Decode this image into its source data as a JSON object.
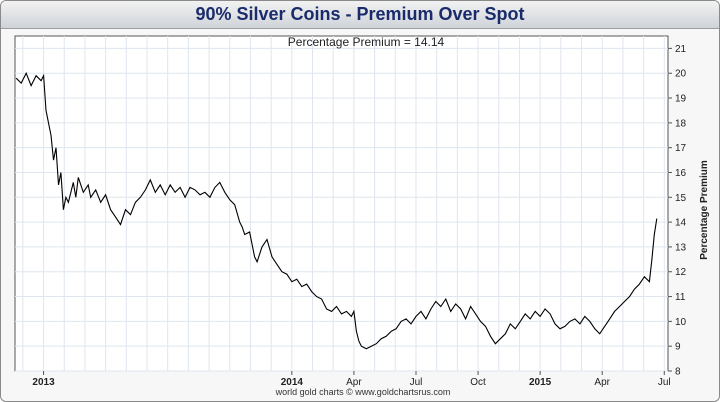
{
  "header": {
    "title": "90% Silver Coins - Premium Over Spot"
  },
  "chart_data": {
    "type": "line",
    "annotation": "Percentage Premium = 14.14",
    "ylabel": "Percentage Premium",
    "ylim": [
      8,
      21.5
    ],
    "yticks": [
      8,
      9,
      10,
      11,
      12,
      13,
      14,
      15,
      16,
      17,
      18,
      19,
      20,
      21
    ],
    "xticks": [
      {
        "label": "2013",
        "t": 0.0,
        "bold": true
      },
      {
        "label": "2014",
        "t": 1.0,
        "bold": true
      },
      {
        "label": "Apr",
        "t": 1.25,
        "bold": false
      },
      {
        "label": "Jul",
        "t": 1.5,
        "bold": false
      },
      {
        "label": "Oct",
        "t": 1.75,
        "bold": false
      },
      {
        "label": "2015",
        "t": 2.0,
        "bold": true
      },
      {
        "label": "Apr",
        "t": 2.25,
        "bold": false
      },
      {
        "label": "Jul",
        "t": 2.5,
        "bold": false
      }
    ],
    "credit": "world gold charts © www.goldchartsrus.com",
    "series": [
      {
        "color": "#000000",
        "points": [
          [
            -0.11,
            19.8
          ],
          [
            -0.09,
            19.6
          ],
          [
            -0.07,
            20.0
          ],
          [
            -0.05,
            19.5
          ],
          [
            -0.03,
            19.9
          ],
          [
            -0.01,
            19.7
          ],
          [
            0.0,
            19.9
          ],
          [
            0.01,
            18.5
          ],
          [
            0.03,
            17.5
          ],
          [
            0.04,
            16.5
          ],
          [
            0.05,
            17.0
          ],
          [
            0.06,
            15.5
          ],
          [
            0.07,
            16.0
          ],
          [
            0.08,
            14.5
          ],
          [
            0.09,
            15.0
          ],
          [
            0.1,
            14.8
          ],
          [
            0.12,
            15.6
          ],
          [
            0.13,
            15.0
          ],
          [
            0.14,
            15.8
          ],
          [
            0.16,
            15.2
          ],
          [
            0.18,
            15.5
          ],
          [
            0.19,
            15.0
          ],
          [
            0.21,
            15.3
          ],
          [
            0.23,
            14.8
          ],
          [
            0.25,
            15.1
          ],
          [
            0.27,
            14.5
          ],
          [
            0.29,
            14.2
          ],
          [
            0.31,
            13.9
          ],
          [
            0.33,
            14.5
          ],
          [
            0.35,
            14.3
          ],
          [
            0.37,
            14.8
          ],
          [
            0.39,
            15.0
          ],
          [
            0.41,
            15.3
          ],
          [
            0.43,
            15.7
          ],
          [
            0.45,
            15.2
          ],
          [
            0.47,
            15.5
          ],
          [
            0.49,
            15.1
          ],
          [
            0.51,
            15.5
          ],
          [
            0.53,
            15.2
          ],
          [
            0.55,
            15.4
          ],
          [
            0.57,
            15.0
          ],
          [
            0.59,
            15.4
          ],
          [
            0.61,
            15.3
          ],
          [
            0.63,
            15.1
          ],
          [
            0.65,
            15.2
          ],
          [
            0.67,
            15.0
          ],
          [
            0.69,
            15.4
          ],
          [
            0.71,
            15.6
          ],
          [
            0.73,
            15.2
          ],
          [
            0.75,
            14.9
          ],
          [
            0.77,
            14.7
          ],
          [
            0.79,
            14.0
          ],
          [
            0.8,
            13.8
          ],
          [
            0.81,
            13.5
          ],
          [
            0.83,
            13.6
          ],
          [
            0.85,
            12.6
          ],
          [
            0.86,
            12.4
          ],
          [
            0.88,
            13.0
          ],
          [
            0.9,
            13.3
          ],
          [
            0.92,
            12.6
          ],
          [
            0.94,
            12.3
          ],
          [
            0.96,
            12.0
          ],
          [
            0.98,
            11.9
          ],
          [
            1.0,
            11.6
          ],
          [
            1.02,
            11.7
          ],
          [
            1.04,
            11.4
          ],
          [
            1.06,
            11.5
          ],
          [
            1.08,
            11.2
          ],
          [
            1.1,
            11.0
          ],
          [
            1.12,
            10.9
          ],
          [
            1.14,
            10.5
          ],
          [
            1.16,
            10.4
          ],
          [
            1.18,
            10.6
          ],
          [
            1.2,
            10.3
          ],
          [
            1.22,
            10.4
          ],
          [
            1.24,
            10.2
          ],
          [
            1.25,
            10.4
          ],
          [
            1.26,
            9.6
          ],
          [
            1.27,
            9.2
          ],
          [
            1.28,
            9.0
          ],
          [
            1.3,
            8.9
          ],
          [
            1.32,
            9.0
          ],
          [
            1.34,
            9.1
          ],
          [
            1.36,
            9.3
          ],
          [
            1.38,
            9.4
          ],
          [
            1.4,
            9.6
          ],
          [
            1.42,
            9.7
          ],
          [
            1.44,
            10.0
          ],
          [
            1.46,
            10.1
          ],
          [
            1.48,
            9.9
          ],
          [
            1.5,
            10.2
          ],
          [
            1.52,
            10.4
          ],
          [
            1.54,
            10.1
          ],
          [
            1.56,
            10.5
          ],
          [
            1.58,
            10.8
          ],
          [
            1.6,
            10.6
          ],
          [
            1.62,
            10.9
          ],
          [
            1.64,
            10.4
          ],
          [
            1.66,
            10.7
          ],
          [
            1.68,
            10.5
          ],
          [
            1.7,
            10.1
          ],
          [
            1.72,
            10.6
          ],
          [
            1.74,
            10.3
          ],
          [
            1.76,
            10.0
          ],
          [
            1.78,
            9.8
          ],
          [
            1.8,
            9.4
          ],
          [
            1.82,
            9.1
          ],
          [
            1.84,
            9.3
          ],
          [
            1.86,
            9.5
          ],
          [
            1.88,
            9.9
          ],
          [
            1.9,
            9.7
          ],
          [
            1.92,
            10.0
          ],
          [
            1.94,
            10.3
          ],
          [
            1.96,
            10.1
          ],
          [
            1.98,
            10.4
          ],
          [
            2.0,
            10.2
          ],
          [
            2.02,
            10.5
          ],
          [
            2.04,
            10.3
          ],
          [
            2.06,
            9.9
          ],
          [
            2.08,
            9.7
          ],
          [
            2.1,
            9.8
          ],
          [
            2.12,
            10.0
          ],
          [
            2.14,
            10.1
          ],
          [
            2.16,
            9.9
          ],
          [
            2.18,
            10.2
          ],
          [
            2.2,
            10.0
          ],
          [
            2.22,
            9.7
          ],
          [
            2.24,
            9.5
          ],
          [
            2.26,
            9.8
          ],
          [
            2.28,
            10.1
          ],
          [
            2.3,
            10.4
          ],
          [
            2.32,
            10.6
          ],
          [
            2.34,
            10.8
          ],
          [
            2.36,
            11.0
          ],
          [
            2.38,
            11.3
          ],
          [
            2.4,
            11.5
          ],
          [
            2.42,
            11.8
          ],
          [
            2.44,
            11.6
          ],
          [
            2.45,
            12.5
          ],
          [
            2.46,
            13.5
          ],
          [
            2.47,
            14.14
          ]
        ]
      }
    ]
  }
}
